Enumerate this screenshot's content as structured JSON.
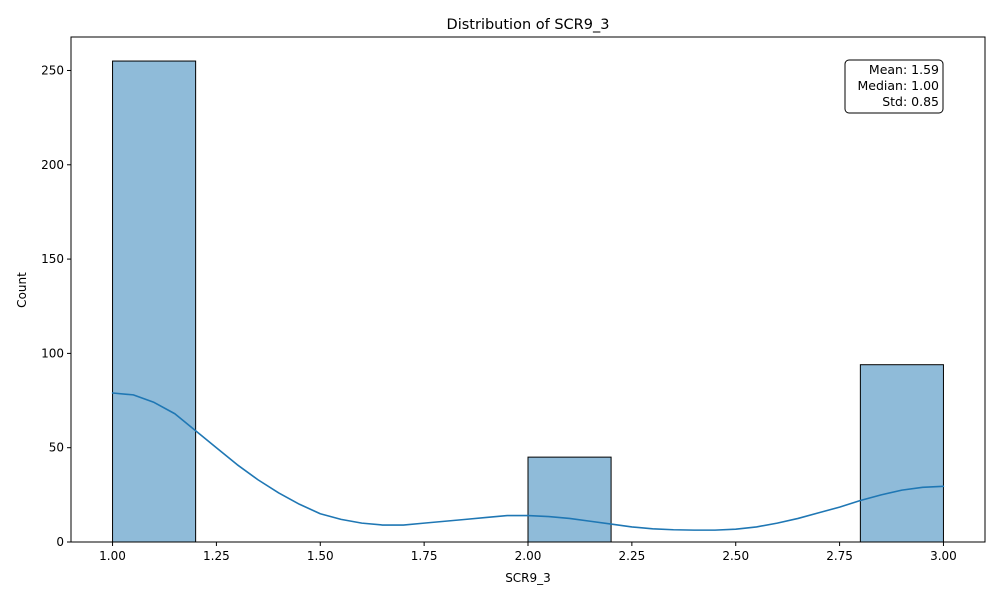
{
  "chart_data": {
    "type": "bar",
    "title": "Distribution of SCR9_3",
    "xlabel": "SCR9_3",
    "ylabel": "Count",
    "xlim": [
      0.9,
      3.1
    ],
    "ylim": [
      0,
      267.75
    ],
    "xticks": [
      1.0,
      1.25,
      1.5,
      1.75,
      2.0,
      2.25,
      2.5,
      2.75,
      3.0
    ],
    "xtick_labels": [
      "1.00",
      "1.25",
      "1.50",
      "1.75",
      "2.00",
      "2.25",
      "2.50",
      "2.75",
      "3.00"
    ],
    "yticks": [
      0,
      50,
      100,
      150,
      200,
      250
    ],
    "ytick_labels": [
      "0",
      "50",
      "100",
      "150",
      "200",
      "250"
    ],
    "bins": [
      {
        "x0": 1.0,
        "x1": 1.2,
        "count": 255
      },
      {
        "x0": 2.0,
        "x1": 2.2,
        "count": 45
      },
      {
        "x0": 2.8,
        "x1": 3.0,
        "count": 94
      }
    ],
    "kde": {
      "x": [
        1.0,
        1.05,
        1.1,
        1.15,
        1.2,
        1.25,
        1.3,
        1.35,
        1.4,
        1.45,
        1.5,
        1.55,
        1.6,
        1.65,
        1.7,
        1.75,
        1.8,
        1.85,
        1.9,
        1.95,
        2.0,
        2.05,
        2.1,
        2.15,
        2.2,
        2.25,
        2.3,
        2.35,
        2.4,
        2.45,
        2.5,
        2.55,
        2.6,
        2.65,
        2.7,
        2.75,
        2.8,
        2.85,
        2.9,
        2.95,
        3.0
      ],
      "y": [
        79,
        78,
        74,
        68,
        59,
        50,
        41,
        33,
        26,
        20,
        15,
        12,
        10,
        9,
        9,
        10,
        11,
        12,
        13,
        14,
        14,
        13.5,
        12.5,
        11,
        9.5,
        8,
        7,
        6.5,
        6.3,
        6.3,
        6.8,
        8,
        10,
        12.5,
        15.5,
        18.5,
        22,
        25,
        27.5,
        29,
        29.5
      ]
    },
    "stats": [
      "Mean: 1.59",
      "Median: 1.00",
      "Std: 0.85"
    ],
    "colors": {
      "bar_fill": "#8fbbd9",
      "bar_edge": "#000000",
      "kde_line": "#1f77b4"
    },
    "grid": false,
    "stats_box_placement": "top-right"
  }
}
